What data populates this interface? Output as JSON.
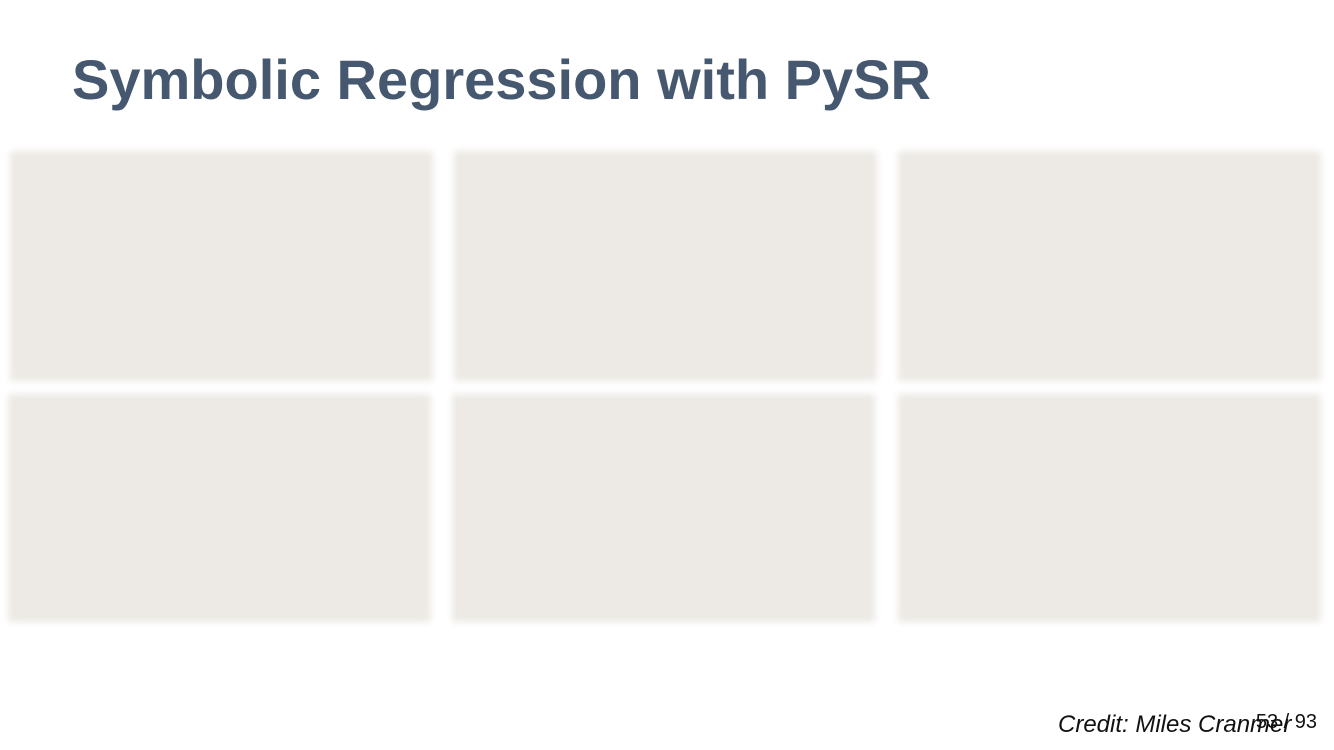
{
  "slide": {
    "title": "Symbolic Regression with PySR",
    "credit": "Credit: Miles Cranmer",
    "page_number": "53 / 93",
    "title_color": "#465770",
    "panel_color": "#edeae5"
  }
}
